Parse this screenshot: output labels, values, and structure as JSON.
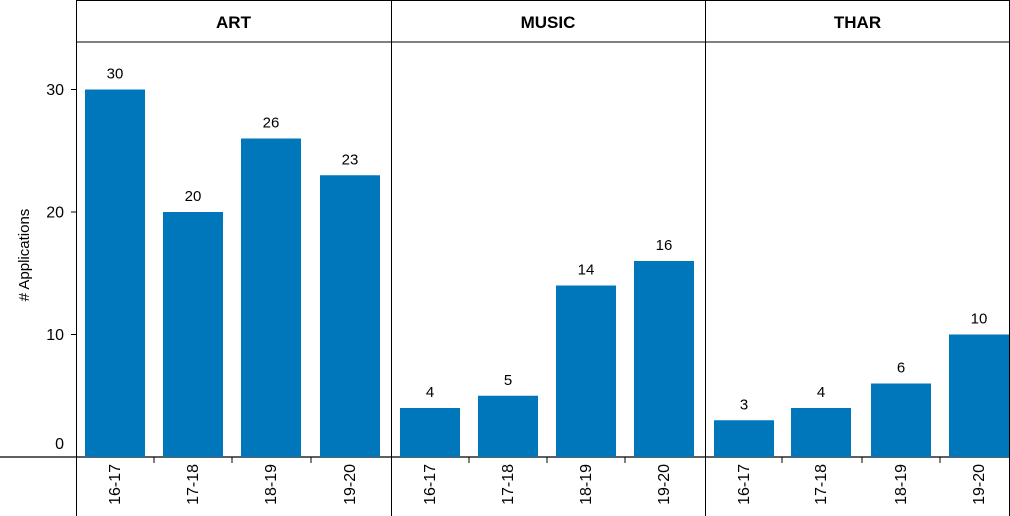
{
  "chart_data": {
    "type": "bar",
    "ylabel": "# Applications",
    "ylim": [
      0,
      30
    ],
    "yticks": [
      0,
      10,
      20,
      30
    ],
    "bar_color": "#0077bb",
    "panels": [
      {
        "title": "ART",
        "categories": [
          "16-17",
          "17-18",
          "18-19",
          "19-20"
        ],
        "values": [
          30,
          20,
          26,
          23
        ]
      },
      {
        "title": "MUSIC",
        "categories": [
          "16-17",
          "17-18",
          "18-19",
          "19-20"
        ],
        "values": [
          4,
          5,
          14,
          16
        ]
      },
      {
        "title": "THAR",
        "categories": [
          "16-17",
          "17-18",
          "18-19",
          "19-20"
        ],
        "values": [
          3,
          4,
          6,
          10
        ]
      }
    ]
  }
}
